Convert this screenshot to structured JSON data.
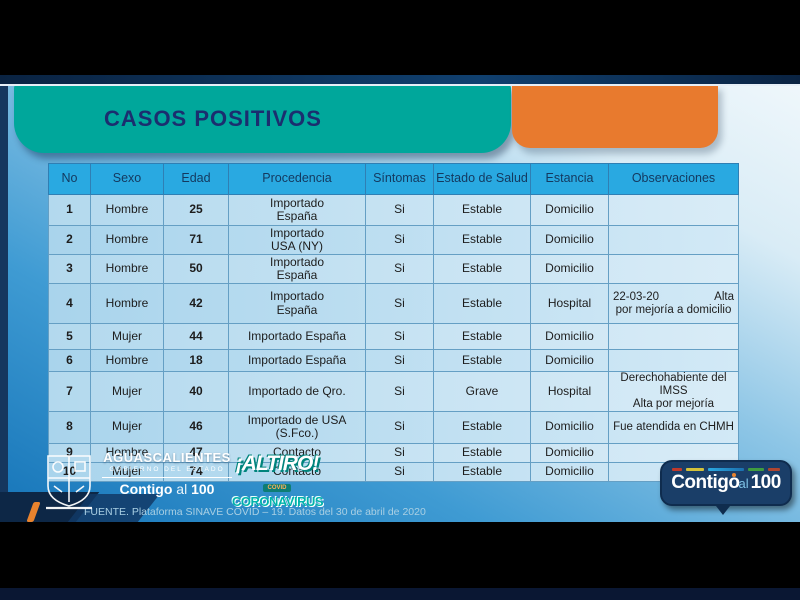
{
  "slide": {
    "title": "CASOS POSITIVOS",
    "footer": "FUENTE. Plataforma SINAVE COVID – 19. Datos del 30 de abril de 2020"
  },
  "table": {
    "headers": [
      "No",
      "Sexo",
      "Edad",
      "Procedencia",
      "Síntomas",
      "Estado de Salud",
      "Estancia",
      "Observaciones"
    ],
    "rows": [
      [
        "1",
        "Hombre",
        "25",
        [
          "Importado",
          "España"
        ],
        "Si",
        "Estable",
        "Domicilio",
        ""
      ],
      [
        "2",
        "Hombre",
        "71",
        [
          "Importado",
          "USA (NY)"
        ],
        "Si",
        "Estable",
        "Domicilio",
        ""
      ],
      [
        "3",
        "Hombre",
        "50",
        [
          "Importado",
          "España"
        ],
        "Si",
        "Estable",
        "Domicilio",
        ""
      ],
      [
        "4",
        "Hombre",
        "42",
        [
          "Importado",
          "España"
        ],
        "Si",
        "Estable",
        "Hospital",
        [
          "22-03-20|Alta",
          "por mejoría a domicilio"
        ]
      ],
      [
        "5",
        "Mujer",
        "44",
        "Importado España",
        "Si",
        "Estable",
        "Domicilio",
        ""
      ],
      [
        "6",
        "Hombre",
        "18",
        "Importado España",
        "Si",
        "Estable",
        "Domicilio",
        ""
      ],
      [
        "7",
        "Mujer",
        "40",
        "Importado de Qro.",
        "Si",
        "Grave",
        "Hospital",
        [
          "Derechohabiente del",
          "IMSS",
          "Alta por mejoría"
        ]
      ],
      [
        "8",
        "Mujer",
        "46",
        [
          "Importado de USA",
          "(S.Fco.)"
        ],
        "Si",
        "Estable",
        "Domicilio",
        "Fue atendida en CHMH"
      ],
      [
        "9",
        "Hombre",
        "47",
        "Contacto",
        "Si",
        "Estable",
        "Domicilio",
        ""
      ],
      [
        "10",
        "Mujer",
        "74",
        "Contacto",
        "Si",
        "Estable",
        "Domicilio",
        ""
      ]
    ]
  },
  "logos": {
    "gov": {
      "name_top": "AGUASCALIENTES",
      "name_sub": "GOBIERNO DEL ESTADO",
      "slogan_contigo": "Contigo",
      "slogan_al": "al",
      "slogan_num": "100"
    },
    "altiro": {
      "line1": "¡ALTIRO!",
      "line2": "COVID",
      "line3": "CORONAVIRUS"
    },
    "badge": {
      "contigo": "Contigo",
      "al": "al",
      "num": "100"
    }
  },
  "colors": {
    "accent_teal": "#00a79b",
    "accent_orange": "#e87a2e",
    "header_blue": "#29a9e1",
    "navy": "#15375f",
    "title_navy": "#1b2e6f"
  }
}
